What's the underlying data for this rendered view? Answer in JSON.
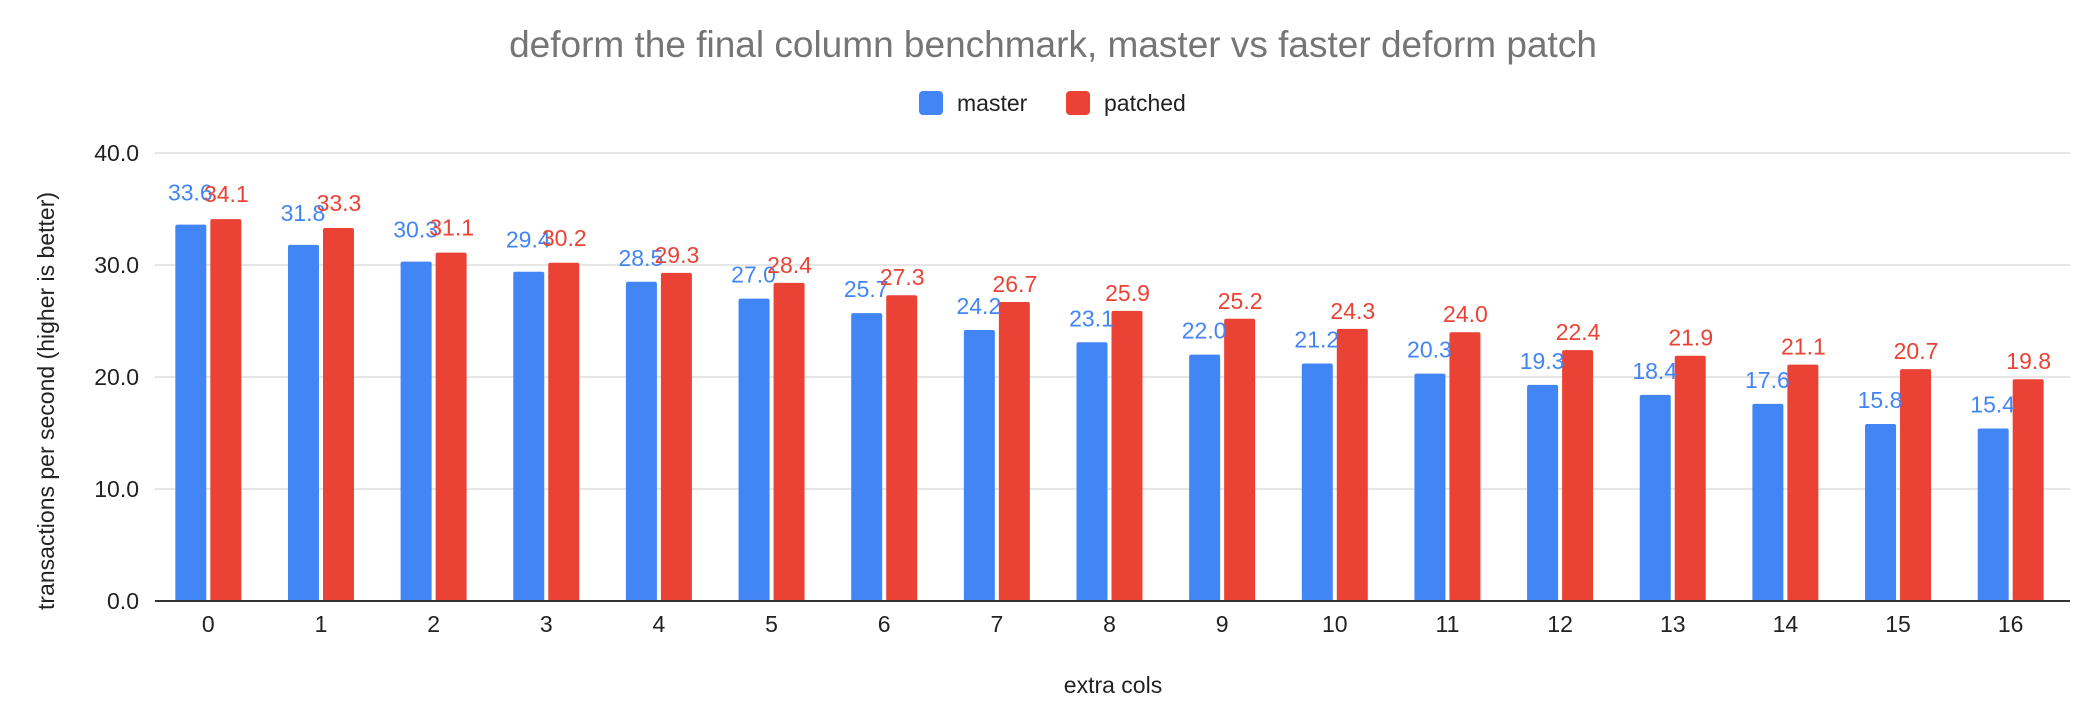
{
  "chart_data": {
    "type": "bar",
    "title": "deform the final column benchmark, master vs faster deform patch",
    "xlabel": "extra cols",
    "ylabel": "transactions per second (higher is better)",
    "ylim": [
      0,
      40
    ],
    "yticks": [
      "0.0",
      "10.0",
      "20.0",
      "30.0",
      "40.0"
    ],
    "ytick_values": [
      0,
      10,
      20,
      30,
      40
    ],
    "grid": true,
    "legend_position": "top",
    "categories": [
      "0",
      "1",
      "2",
      "3",
      "4",
      "5",
      "6",
      "7",
      "8",
      "9",
      "10",
      "11",
      "12",
      "13",
      "14",
      "15",
      "16"
    ],
    "series": [
      {
        "name": "master",
        "color": "#4285f4",
        "values": [
          33.6,
          31.8,
          30.3,
          29.4,
          28.5,
          27.0,
          25.7,
          24.2,
          23.1,
          22.0,
          21.2,
          20.3,
          19.3,
          18.4,
          17.6,
          15.8,
          15.4
        ],
        "labels": [
          "33.6",
          "31.8",
          "30.3",
          "29.4",
          "28.5",
          "27.0",
          "25.7",
          "24.2",
          "23.1",
          "22.0",
          "21.2",
          "20.3",
          "19.3",
          "18.4",
          "17.6",
          "15.8",
          "15.4"
        ]
      },
      {
        "name": "patched",
        "color": "#ea4335",
        "values": [
          34.1,
          33.3,
          31.1,
          30.2,
          29.3,
          28.4,
          27.3,
          26.7,
          25.9,
          25.2,
          24.3,
          24.0,
          22.4,
          21.9,
          21.1,
          20.7,
          19.8
        ],
        "labels": [
          "34.1",
          "33.3",
          "31.1",
          "30.2",
          "29.3",
          "28.4",
          "27.3",
          "26.7",
          "25.9",
          "25.2",
          "24.3",
          "24.0",
          "22.4",
          "21.9",
          "21.1",
          "20.7",
          "19.8"
        ]
      }
    ]
  }
}
